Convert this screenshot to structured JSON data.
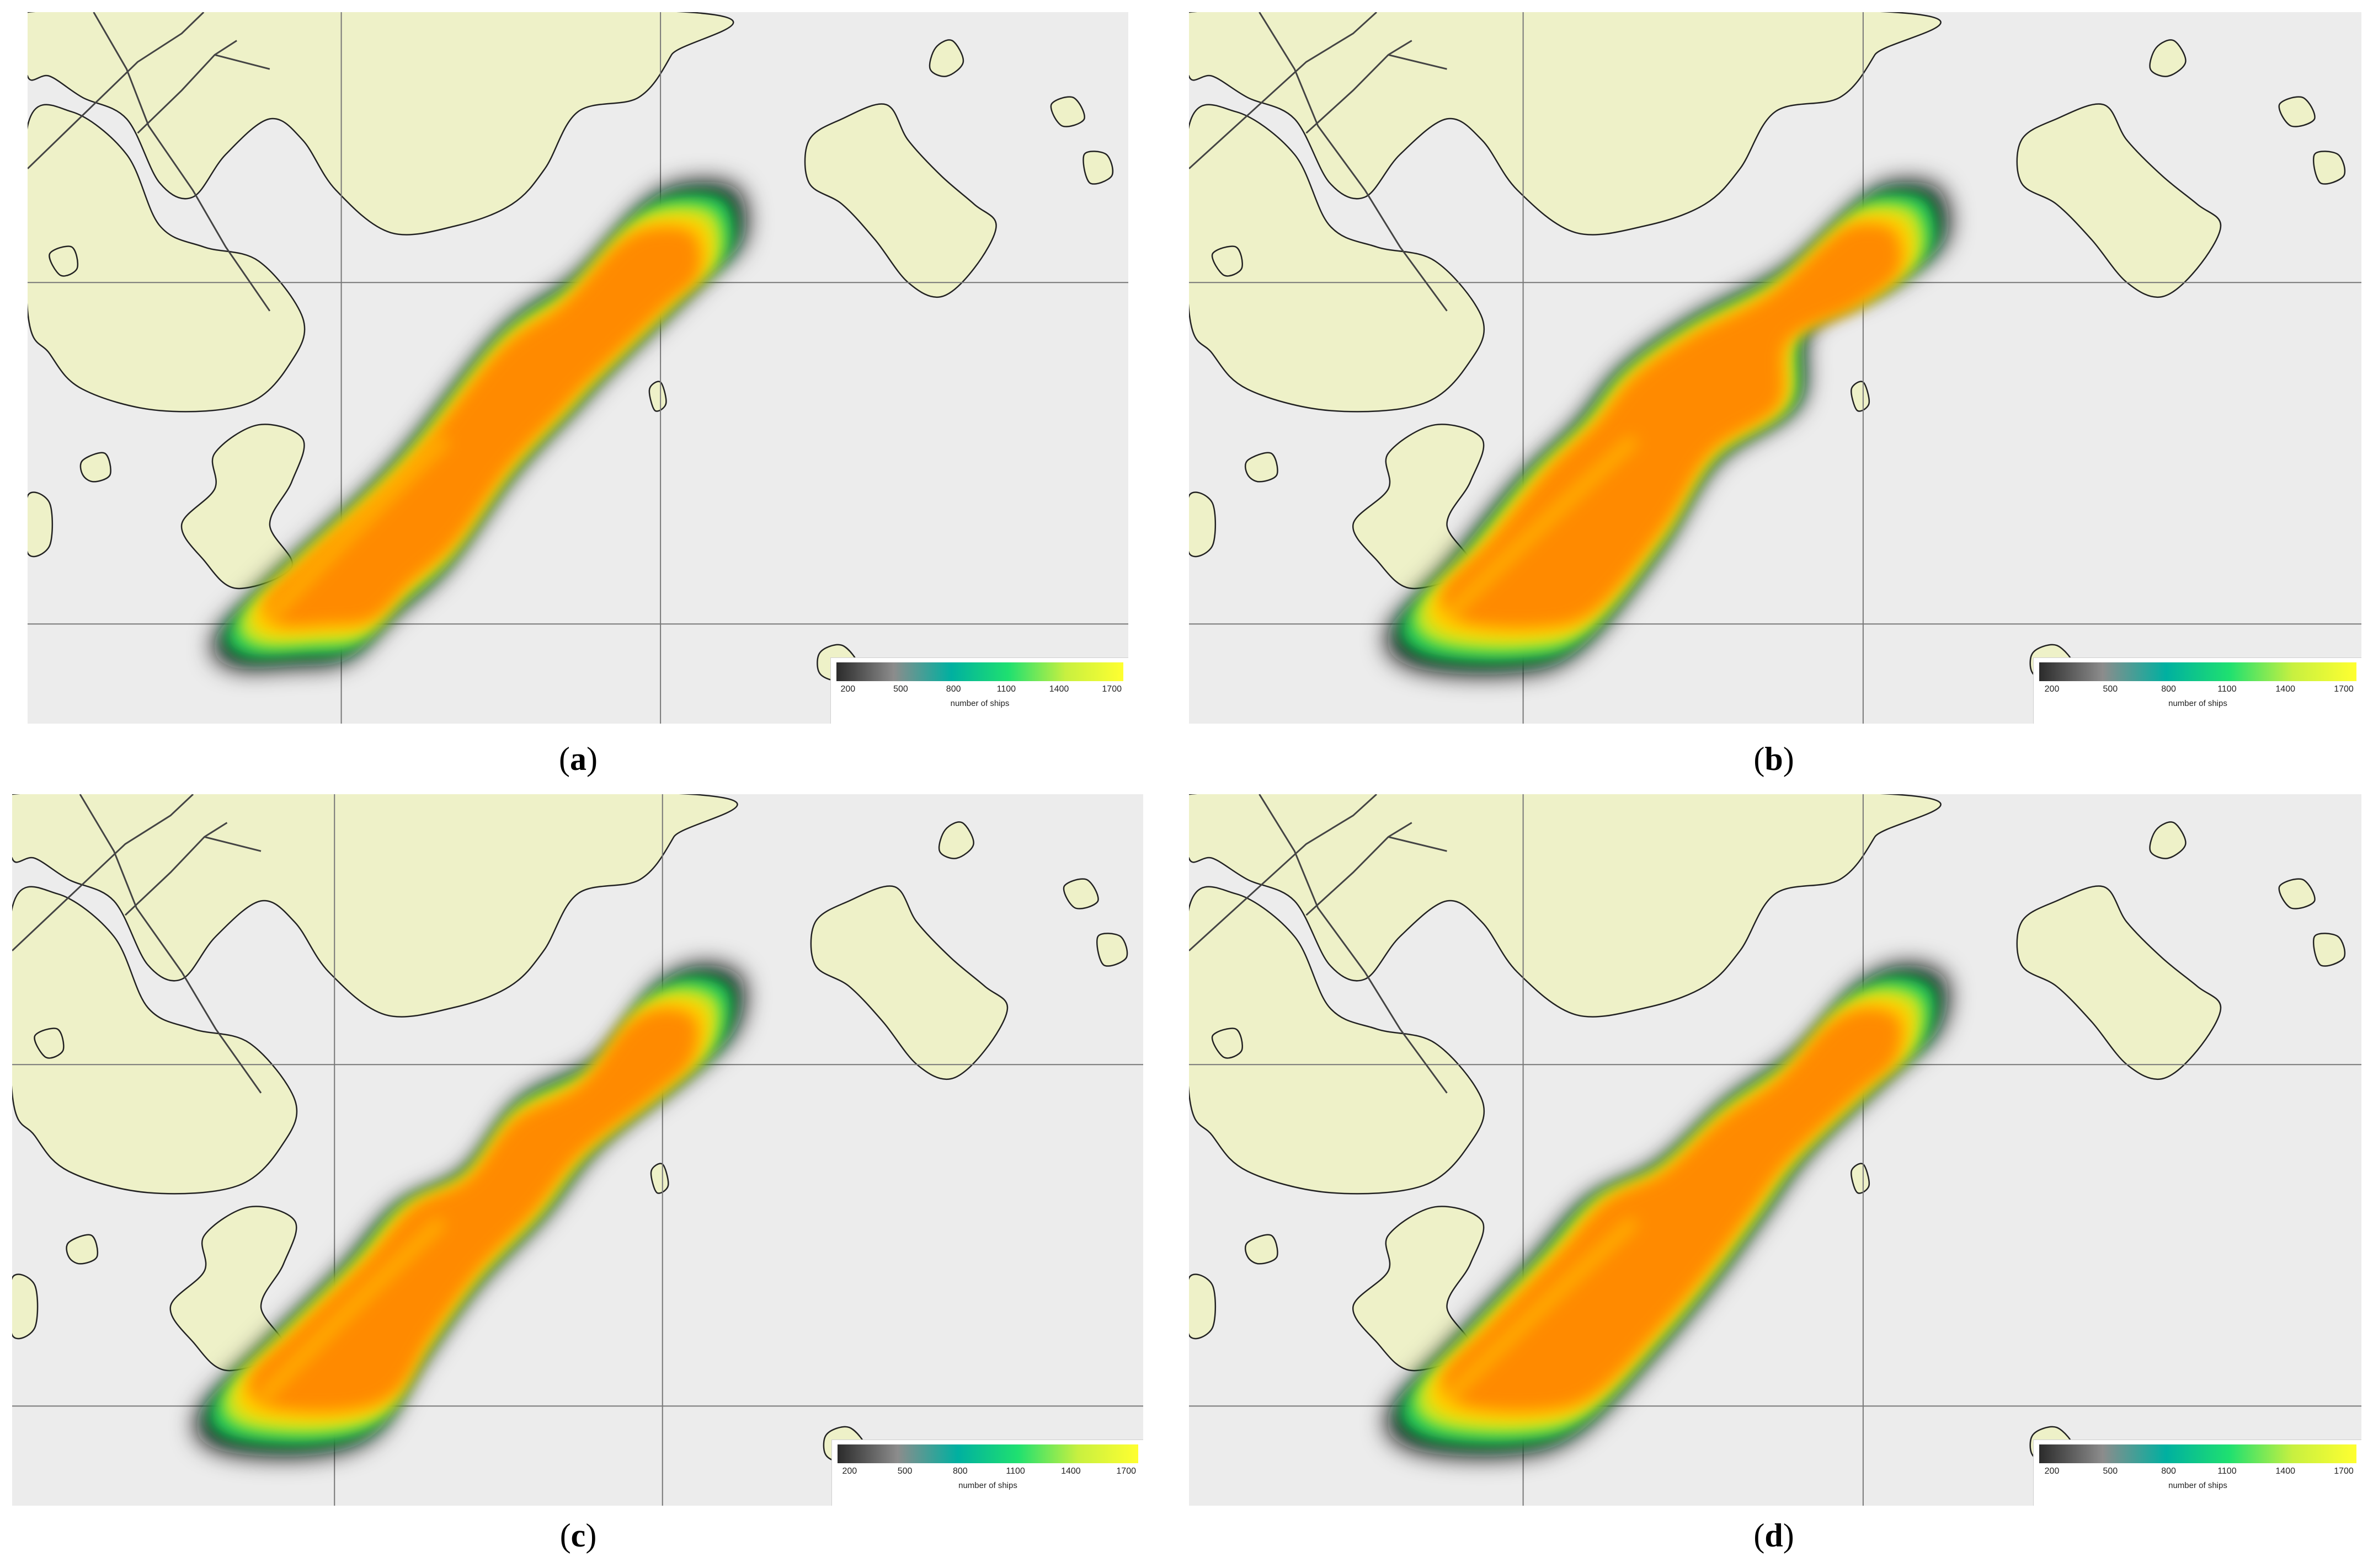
{
  "figure": {
    "panels": [
      {
        "id": "a",
        "caption_open": "(",
        "caption_letter": "a",
        "caption_close": ")"
      },
      {
        "id": "b",
        "caption_open": "(",
        "caption_letter": "b",
        "caption_close": ")"
      },
      {
        "id": "c",
        "caption_open": "(",
        "caption_letter": "c",
        "caption_close": ")"
      },
      {
        "id": "d",
        "caption_open": "(",
        "caption_letter": "d",
        "caption_close": ")"
      }
    ],
    "legend": {
      "ticks": [
        "200",
        "500",
        "800",
        "1100",
        "1400",
        "1700"
      ],
      "title": "number of ships",
      "range": [
        200,
        1700
      ],
      "colors": [
        "#2b2b2b",
        "#8c8c8c",
        "#00b0a0",
        "#1fe070",
        "#c8f040",
        "#ffff30"
      ]
    },
    "colors": {
      "land": "#eef1c8",
      "sea": "#ececec",
      "grid": "#777777",
      "coast": "#222222",
      "heat_outer": "#0d0d0d",
      "heat_green": "#17c25a",
      "heat_lime": "#b8ea2a",
      "heat_yellow": "#ffd200",
      "heat_core": "#ff8a00"
    }
  }
}
